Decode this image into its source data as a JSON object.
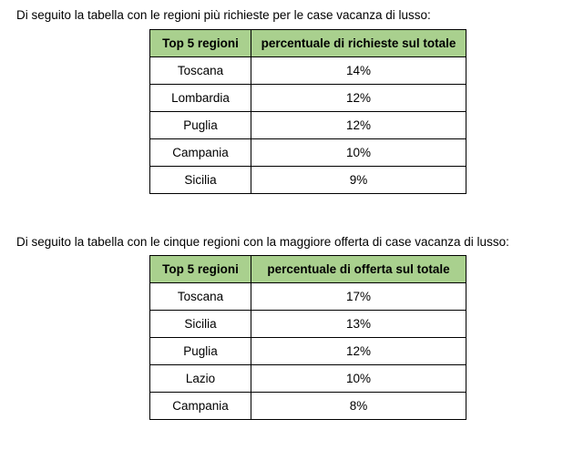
{
  "section1": {
    "intro": "Di seguito la tabella con le regioni più richieste per le case vacanza di lusso:",
    "headers": [
      "Top 5 regioni",
      "percentuale di richieste sul totale"
    ],
    "rows": [
      {
        "region": "Toscana",
        "value": "14%"
      },
      {
        "region": "Lombardia",
        "value": "12%"
      },
      {
        "region": "Puglia",
        "value": "12%"
      },
      {
        "region": "Campania",
        "value": "10%"
      },
      {
        "region": "Sicilia",
        "value": "9%"
      }
    ]
  },
  "section2": {
    "intro": "Di seguito la tabella con le cinque regioni con la maggiore offerta di case vacanza di lusso:",
    "headers": [
      "Top 5 regioni",
      "percentuale di offerta sul totale"
    ],
    "rows": [
      {
        "region": "Toscana",
        "value": "17%"
      },
      {
        "region": "Sicilia",
        "value": "13%"
      },
      {
        "region": "Puglia",
        "value": "12%"
      },
      {
        "region": "Lazio",
        "value": "10%"
      },
      {
        "region": "Campania",
        "value": "8%"
      }
    ]
  }
}
